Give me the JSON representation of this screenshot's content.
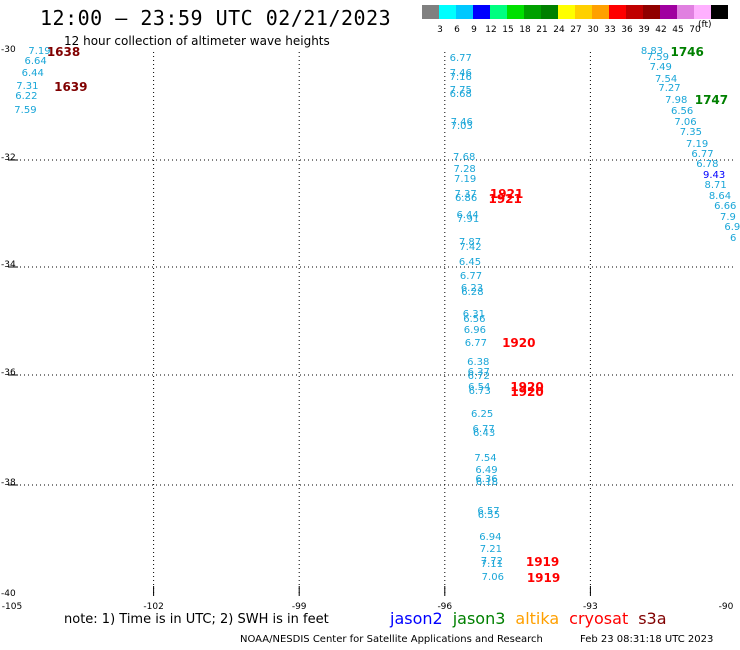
{
  "title": "12:00 – 23:59 UTC 02/21/2023",
  "subtitle": "12 hour collection of altimeter wave heights",
  "colorbar": {
    "unit": "(ft)",
    "colors": [
      "#808080",
      "#00ffff",
      "#00c8ff",
      "#0000ff",
      "#00ff80",
      "#00e000",
      "#00a000",
      "#008000",
      "#ffff00",
      "#ffd000",
      "#ffa000",
      "#ff0000",
      "#c00000",
      "#900000",
      "#a000a0",
      "#e080e0",
      "#ffb0ff",
      "#000000"
    ],
    "labels": [
      "3",
      "6",
      "9",
      "12",
      "15",
      "18",
      "21",
      "24",
      "27",
      "30",
      "33",
      "36",
      "39",
      "42",
      "45",
      "70"
    ]
  },
  "axes": {
    "lat_labels": [
      "-30",
      "-32",
      "-34",
      "-36",
      "-38",
      "-40"
    ],
    "lon_labels": [
      "-105",
      "-102",
      "-99",
      "-96",
      "-93",
      "-90"
    ]
  },
  "note": "note:  1) Time is in UTC;  2) SWH is in feet",
  "satellites": [
    {
      "name": "jason2",
      "color": "#0000ff"
    },
    {
      "name": "jason3",
      "color": "#008000"
    },
    {
      "name": "altika",
      "color": "#ffa000"
    },
    {
      "name": "cryosat",
      "color": "#ff0000"
    },
    {
      "name": "s3a",
      "color": "#800000"
    }
  ],
  "credit": "NOAA/NESDIS Center for Satellite Applications and Research",
  "created": "Feb 23 08:31:18 UTC 2023",
  "wave_heights": [
    {
      "v": "7.19",
      "lon": -104.58,
      "lat": -29.99
    },
    {
      "v": "6.64",
      "lon": -104.66,
      "lat": -30.19
    },
    {
      "v": "6.44",
      "lon": -104.72,
      "lat": -30.41
    },
    {
      "v": "7.31",
      "lon": -104.83,
      "lat": -30.64
    },
    {
      "v": "6.22",
      "lon": -104.85,
      "lat": -30.84
    },
    {
      "v": "7.59",
      "lon": -104.87,
      "lat": -31.09
    },
    {
      "v": "6.77",
      "lon": -95.9,
      "lat": -30.13
    },
    {
      "v": "7.46",
      "lon": -95.9,
      "lat": -30.41
    },
    {
      "v": "7.16",
      "lon": -95.9,
      "lat": -30.49
    },
    {
      "v": "7.75",
      "lon": -95.9,
      "lat": -30.72
    },
    {
      "v": "6.68",
      "lon": -95.9,
      "lat": -30.79
    },
    {
      "v": "7.46",
      "lon": -95.88,
      "lat": -31.31
    },
    {
      "v": "7.03",
      "lon": -95.88,
      "lat": -31.38
    },
    {
      "v": "7.68",
      "lon": -95.83,
      "lat": -31.96
    },
    {
      "v": "7.28",
      "lon": -95.82,
      "lat": -32.18
    },
    {
      "v": "7.19",
      "lon": -95.81,
      "lat": -32.37
    },
    {
      "v": "7.37",
      "lon": -95.8,
      "lat": -32.65
    },
    {
      "v": "6.86",
      "lon": -95.79,
      "lat": -32.73
    },
    {
      "v": "6.44",
      "lon": -95.76,
      "lat": -33.05
    },
    {
      "v": "7.91",
      "lon": -95.75,
      "lat": -33.13
    },
    {
      "v": "7.87",
      "lon": -95.71,
      "lat": -33.55
    },
    {
      "v": "7.42",
      "lon": -95.7,
      "lat": -33.64
    },
    {
      "v": "6.45",
      "lon": -95.71,
      "lat": -33.92
    },
    {
      "v": "6.77",
      "lon": -95.69,
      "lat": -34.19
    },
    {
      "v": "6.23",
      "lon": -95.67,
      "lat": -34.41
    },
    {
      "v": "6.28",
      "lon": -95.66,
      "lat": -34.48
    },
    {
      "v": "6.31",
      "lon": -95.63,
      "lat": -34.89
    },
    {
      "v": "6.56",
      "lon": -95.62,
      "lat": -34.99
    },
    {
      "v": "6.96",
      "lon": -95.61,
      "lat": -35.18
    },
    {
      "v": "6.77",
      "lon": -95.59,
      "lat": -35.42
    },
    {
      "v": "6.38",
      "lon": -95.54,
      "lat": -35.78
    },
    {
      "v": "6.37",
      "lon": -95.53,
      "lat": -35.96
    },
    {
      "v": "6.72",
      "lon": -95.53,
      "lat": -36.04
    },
    {
      "v": "6.54",
      "lon": -95.52,
      "lat": -36.24
    },
    {
      "v": "6.73",
      "lon": -95.51,
      "lat": -36.3
    },
    {
      "v": "6.25",
      "lon": -95.46,
      "lat": -36.73
    },
    {
      "v": "6.77",
      "lon": -95.43,
      "lat": -37.0
    },
    {
      "v": "6.43",
      "lon": -95.42,
      "lat": -37.07
    },
    {
      "v": "7.54",
      "lon": -95.39,
      "lat": -37.52
    },
    {
      "v": "6.49",
      "lon": -95.37,
      "lat": -37.74
    },
    {
      "v": "6.36",
      "lon": -95.37,
      "lat": -37.9
    },
    {
      "v": "6.18",
      "lon": -95.36,
      "lat": -37.96
    },
    {
      "v": "6.57",
      "lon": -95.33,
      "lat": -38.48
    },
    {
      "v": "6.55",
      "lon": -95.32,
      "lat": -38.56
    },
    {
      "v": "6.94",
      "lon": -95.29,
      "lat": -38.96
    },
    {
      "v": "7.21",
      "lon": -95.28,
      "lat": -39.17
    },
    {
      "v": "7.72",
      "lon": -95.26,
      "lat": -39.39
    },
    {
      "v": "7.11",
      "lon": -95.26,
      "lat": -39.44
    },
    {
      "v": "7.06",
      "lon": -95.24,
      "lat": -39.67
    },
    {
      "v": "8.83",
      "lon": -91.96,
      "lat": -29.92
    },
    {
      "v": "7.59",
      "lon": -91.84,
      "lat": -30.11
    },
    {
      "v": "7.49",
      "lon": -91.78,
      "lat": -30.3
    },
    {
      "v": "7.54",
      "lon": -91.67,
      "lat": -30.51
    },
    {
      "v": "7.27",
      "lon": -91.6,
      "lat": -30.69
    },
    {
      "v": "7.98",
      "lon": -91.46,
      "lat": -30.9
    },
    {
      "v": "6.56",
      "lon": -91.34,
      "lat": -31.11
    },
    {
      "v": "7.06",
      "lon": -91.27,
      "lat": -31.32
    },
    {
      "v": "7.35",
      "lon": -91.16,
      "lat": -31.5
    },
    {
      "v": "7.19",
      "lon": -91.03,
      "lat": -31.72
    },
    {
      "v": "6.77",
      "lon": -90.92,
      "lat": -31.91
    },
    {
      "v": "6.78",
      "lon": -90.82,
      "lat": -32.1
    },
    {
      "v": "9.43",
      "lon": -90.68,
      "lat": -32.3,
      "color": "#0000ff"
    },
    {
      "v": "8.71",
      "lon": -90.65,
      "lat": -32.49
    },
    {
      "v": "8.64",
      "lon": -90.56,
      "lat": -32.69
    },
    {
      "v": "6.66",
      "lon": -90.45,
      "lat": -32.88
    },
    {
      "v": "7.9",
      "lon": -90.33,
      "lat": -33.08
    },
    {
      "v": "6.9",
      "lon": -90.24,
      "lat": -33.28
    },
    {
      "v": "6",
      "lon": -90.1,
      "lat": -33.48
    }
  ],
  "time_labels": [
    {
      "t": "1638",
      "lon": -104.2,
      "lat": -29.99,
      "color": "#800000"
    },
    {
      "t": "1639",
      "lon": -104.05,
      "lat": -30.64,
      "color": "#800000"
    },
    {
      "t": "1921",
      "lon": -95.07,
      "lat": -32.64,
      "color": "#ff0000"
    },
    {
      "t": "1921",
      "lon": -95.1,
      "lat": -32.73,
      "color": "#ff0000"
    },
    {
      "t": "1920",
      "lon": -94.82,
      "lat": -35.41,
      "color": "#ff0000"
    },
    {
      "t": "1920",
      "lon": -94.65,
      "lat": -36.22,
      "color": "#ff0000"
    },
    {
      "t": "1920",
      "lon": -94.65,
      "lat": -36.3,
      "color": "#ff0000"
    },
    {
      "t": "1919",
      "lon": -94.33,
      "lat": -39.38,
      "color": "#ff0000"
    },
    {
      "t": "1919",
      "lon": -94.31,
      "lat": -39.67,
      "color": "#ff0000"
    },
    {
      "t": "1746",
      "lon": -91.35,
      "lat": -29.92,
      "color": "#008000"
    },
    {
      "t": "1747",
      "lon": -90.85,
      "lat": -30.89,
      "color": "#008000"
    }
  ]
}
